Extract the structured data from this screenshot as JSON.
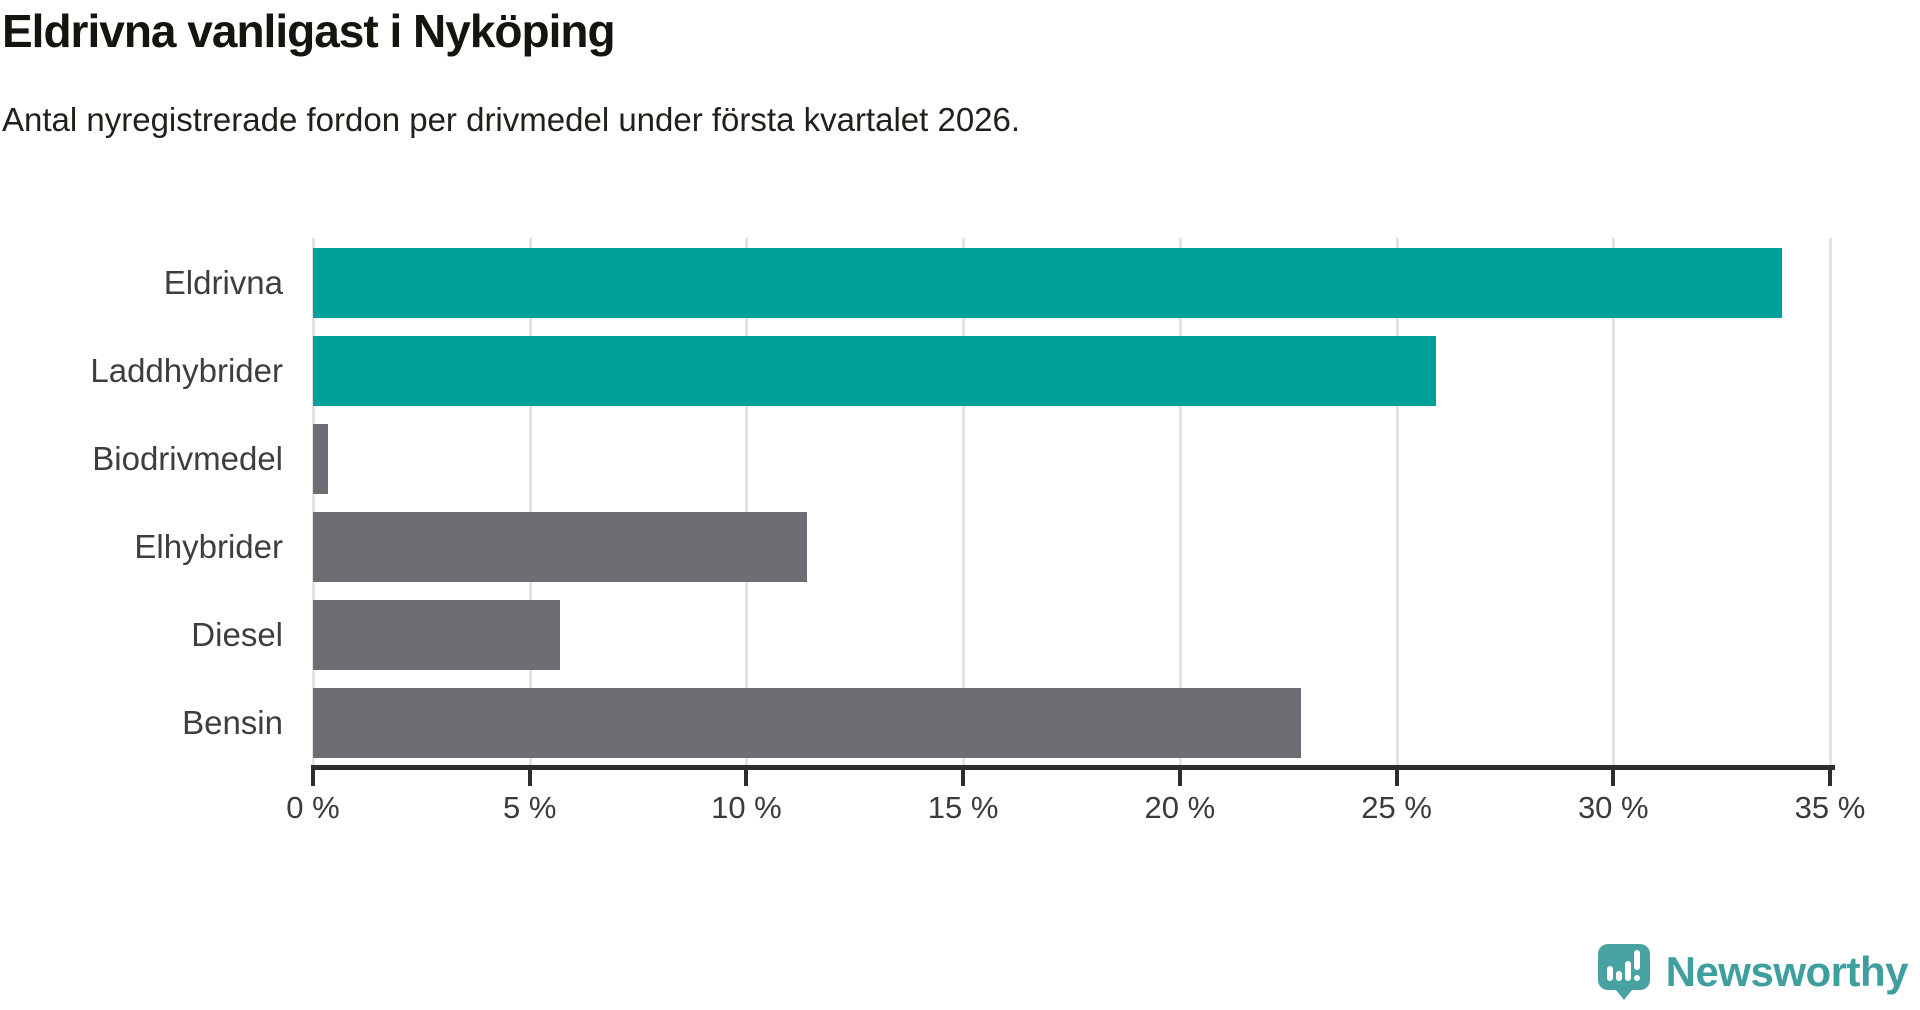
{
  "header": {
    "title": "Eldrivna vanligast i Nyköping",
    "subtitle": "Antal nyregistrerade fordon per drivmedel under första kvartalet 2026."
  },
  "chart_data": {
    "type": "bar",
    "orientation": "horizontal",
    "title": "Eldrivna vanligast i Nyköping",
    "subtitle": "Antal nyregistrerade fordon per drivmedel under första kvartalet 2026.",
    "categories": [
      "Eldrivna",
      "Laddhybrider",
      "Biodrivmedel",
      "Elhybrider",
      "Diesel",
      "Bensin"
    ],
    "values": [
      33.9,
      25.9,
      0.35,
      11.4,
      5.7,
      22.8
    ],
    "unit": "%",
    "bar_colors": [
      "#00a199",
      "#00a199",
      "#6d6d73",
      "#6d6d73",
      "#6d6d73",
      "#6d6d73"
    ],
    "highlight_color": "#00a199",
    "default_color": "#6d6d73",
    "xlim": [
      0,
      35
    ],
    "x_ticks": [
      0,
      5,
      10,
      15,
      20,
      25,
      30,
      35
    ],
    "x_tick_labels": [
      "0 %",
      "5 %",
      "10 %",
      "15 %",
      "20 %",
      "25 %",
      "30 %",
      "35 %"
    ],
    "grid": "vertical",
    "gridline_color": "#e3e3e3",
    "axis_color": "#2d2d2d",
    "legend": "none"
  },
  "footer": {
    "brand": "Newsworthy",
    "brand_color": "#3f9f9e",
    "logo_icon": "newsworthy-speech-bubble-chart-icon",
    "logo_color": "#47a2a1"
  }
}
